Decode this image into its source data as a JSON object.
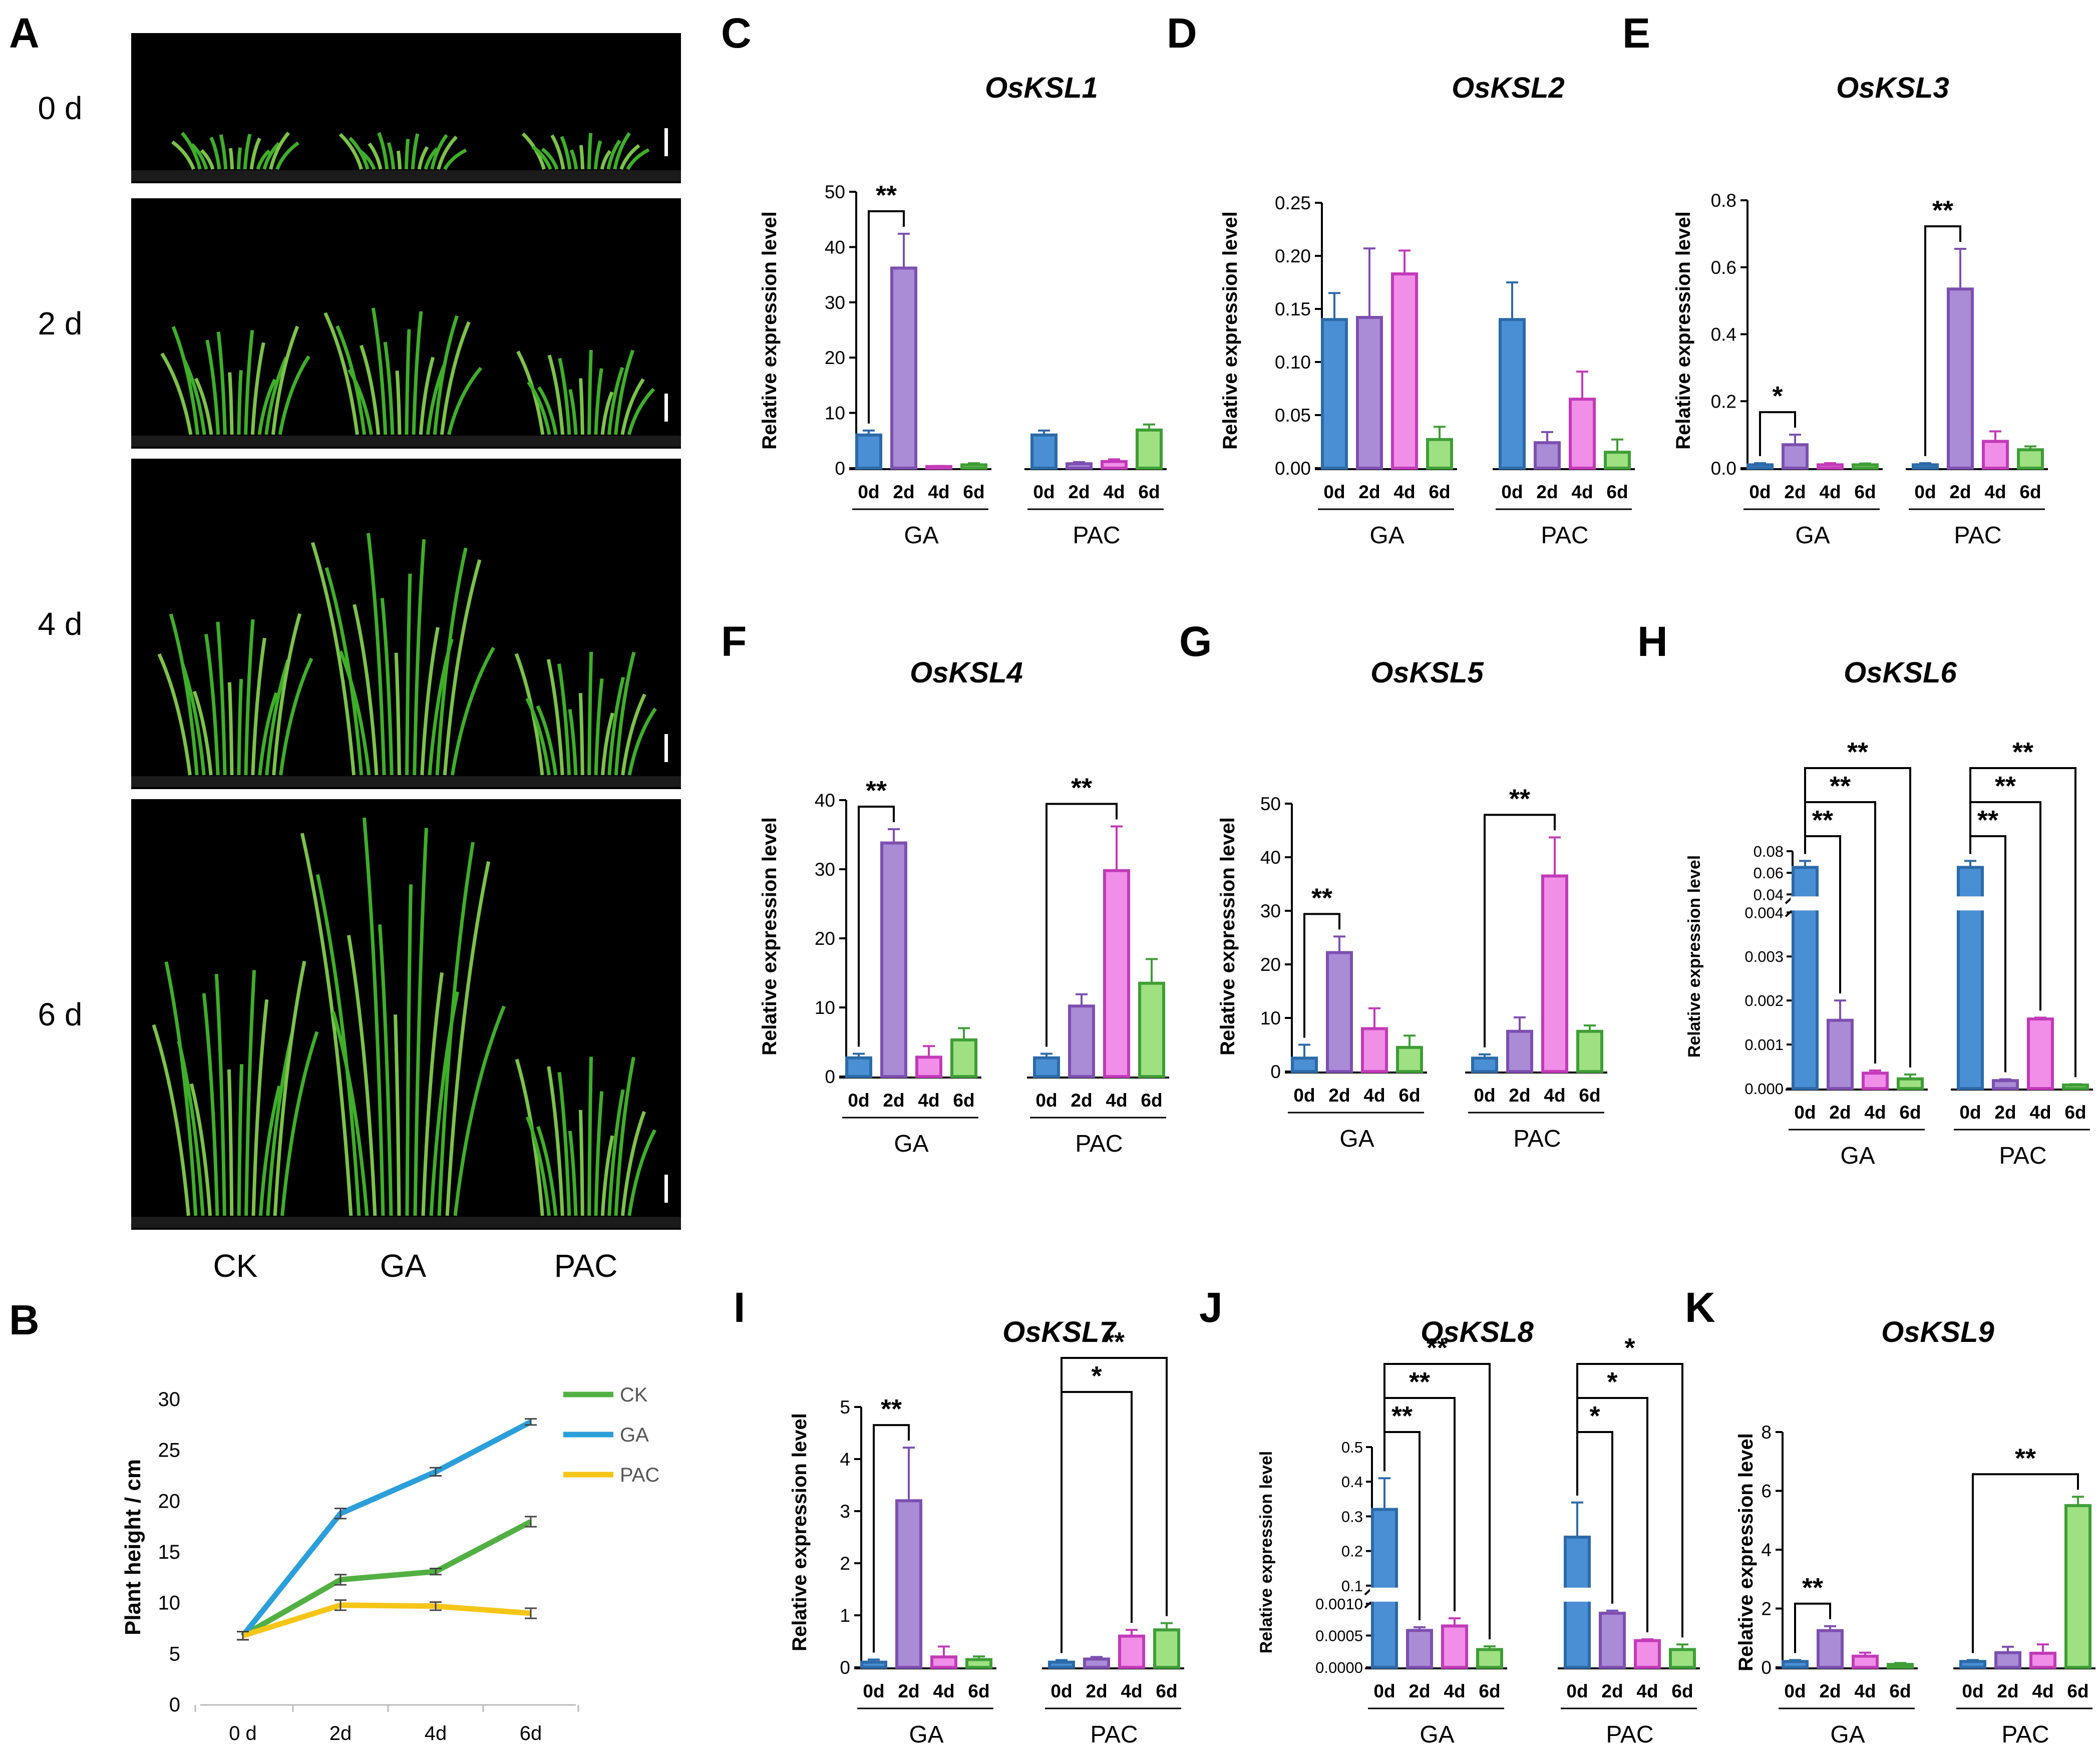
{
  "panel_A": {
    "label": "A",
    "day_labels": [
      "0 d",
      "2 d",
      "4 d",
      "6 d"
    ],
    "treatment_labels": [
      "CK",
      "GA",
      "PAC"
    ],
    "plant_height_level": [
      [
        0.28,
        0.28,
        0.28
      ],
      [
        0.47,
        0.55,
        0.37
      ],
      [
        0.52,
        0.78,
        0.4
      ],
      [
        0.62,
        0.97,
        0.39
      ]
    ]
  },
  "colors": {
    "bar_edges": [
      "#2c6aa8",
      "#7d4fb0",
      "#c23ab8",
      "#3f9e36"
    ],
    "bar_fills": [
      "#4a8fd4",
      "#a98bd6",
      "#f08ee8",
      "#9ee082"
    ],
    "line_ck": "#52b043",
    "line_ga": "#2b9fd9",
    "line_pac": "#f5c518",
    "photo_background": "#000000",
    "leaf_green": "#3fae2a"
  },
  "chart_data": [
    {
      "panel": "B",
      "type": "line",
      "x": [
        "0 d",
        "2d",
        "4d",
        "6d"
      ],
      "ylabel": "Plant height / cm",
      "ylim": [
        0,
        30
      ],
      "yticks": [
        0,
        5,
        10,
        15,
        20,
        25,
        30
      ],
      "legend_position": "top-right",
      "series": [
        {
          "name": "CK",
          "values": [
            6.8,
            12.3,
            13.1,
            18.0
          ],
          "err": [
            0.4,
            0.5,
            0.3,
            0.5
          ]
        },
        {
          "name": "GA",
          "values": [
            6.8,
            18.8,
            22.9,
            27.8
          ],
          "err": [
            0.4,
            0.5,
            0.4,
            0.3
          ]
        },
        {
          "name": "PAC",
          "values": [
            6.8,
            9.8,
            9.7,
            9.0
          ],
          "err": [
            0.4,
            0.5,
            0.4,
            0.5
          ]
        }
      ]
    },
    {
      "panel": "C",
      "title": "OsKSL1",
      "type": "bar",
      "ylabel": "Relative expression level",
      "ylim": [
        0,
        50
      ],
      "yticks": [
        "0",
        "10",
        "20",
        "30",
        "40",
        "50"
      ],
      "groups": [
        "GA",
        "PAC"
      ],
      "categories": [
        "0d",
        "2d",
        "4d",
        "6d"
      ],
      "values": [
        [
          6.0,
          36.2,
          0.3,
          0.6
        ],
        [
          6.0,
          0.8,
          1.2,
          6.9
        ]
      ],
      "err": [
        [
          0.8,
          6.2,
          0.1,
          0.3
        ],
        [
          0.8,
          0.3,
          0.4,
          1.0
        ]
      ],
      "significance": [
        {
          "group": 0,
          "from": 0,
          "to": 1,
          "label": "**"
        }
      ]
    },
    {
      "panel": "D",
      "title": "OsKSL2",
      "type": "bar",
      "ylabel": "Relative expression level",
      "ylim": [
        0,
        0.25
      ],
      "yticks": [
        "0.00",
        "0.05",
        "0.10",
        "0.15",
        "0.20",
        "0.25"
      ],
      "groups": [
        "GA",
        "PAC"
      ],
      "categories": [
        "0d",
        "2d",
        "4d",
        "6d"
      ],
      "values": [
        [
          0.14,
          0.142,
          0.183,
          0.027
        ],
        [
          0.14,
          0.024,
          0.065,
          0.015
        ]
      ],
      "err": [
        [
          0.025,
          0.065,
          0.022,
          0.012
        ],
        [
          0.035,
          0.01,
          0.026,
          0.012
        ]
      ],
      "significance": []
    },
    {
      "panel": "E",
      "title": "OsKSL3",
      "type": "bar",
      "ylabel": "Relative expression level",
      "ylim": [
        0,
        0.8
      ],
      "yticks": [
        "0.0",
        "0.2",
        "0.4",
        "0.6",
        "0.8"
      ],
      "groups": [
        "GA",
        "PAC"
      ],
      "categories": [
        "0d",
        "2d",
        "4d",
        "6d"
      ],
      "values": [
        [
          0.01,
          0.07,
          0.01,
          0.01
        ],
        [
          0.01,
          0.535,
          0.08,
          0.055
        ]
      ],
      "err": [
        [
          0.005,
          0.03,
          0.005,
          0.004
        ],
        [
          0.005,
          0.12,
          0.03,
          0.01
        ]
      ],
      "significance": [
        {
          "group": 0,
          "from": 0,
          "to": 1,
          "label": "*"
        },
        {
          "group": 1,
          "from": 0,
          "to": 1,
          "label": "**"
        }
      ]
    },
    {
      "panel": "F",
      "title": "OsKSL4",
      "type": "bar",
      "ylabel": "Relative expression level",
      "ylim": [
        0,
        40
      ],
      "yticks": [
        "0",
        "10",
        "20",
        "30",
        "40"
      ],
      "groups": [
        "GA",
        "PAC"
      ],
      "categories": [
        "0d",
        "2d",
        "4d",
        "6d"
      ],
      "values": [
        [
          2.7,
          33.8,
          2.8,
          5.3
        ],
        [
          2.7,
          10.2,
          29.8,
          13.5
        ]
      ],
      "err": [
        [
          0.6,
          2.0,
          1.6,
          1.7
        ],
        [
          0.6,
          1.7,
          6.4,
          3.5
        ]
      ],
      "significance": [
        {
          "group": 0,
          "from": 0,
          "to": 1,
          "label": "**"
        },
        {
          "group": 1,
          "from": 0,
          "to": 2,
          "label": "**"
        }
      ]
    },
    {
      "panel": "G",
      "title": "OsKSL5",
      "type": "bar",
      "ylabel": "Relative expression level",
      "ylim": [
        0,
        50
      ],
      "yticks": [
        "0",
        "10",
        "20",
        "30",
        "40",
        "50"
      ],
      "groups": [
        "GA",
        "PAC"
      ],
      "categories": [
        "0d",
        "2d",
        "4d",
        "6d"
      ],
      "values": [
        [
          2.5,
          22.2,
          8.0,
          4.5
        ],
        [
          2.5,
          7.5,
          36.5,
          7.5
        ]
      ],
      "err": [
        [
          2.5,
          3.0,
          3.8,
          2.2
        ],
        [
          0.7,
          2.6,
          7.2,
          1.1
        ]
      ],
      "significance": [
        {
          "group": 0,
          "from": 0,
          "to": 1,
          "label": "**"
        },
        {
          "group": 1,
          "from": 0,
          "to": 2,
          "label": "**"
        }
      ]
    },
    {
      "panel": "H",
      "title": "OsKSL6",
      "type": "bar",
      "broken_axis": true,
      "ylabel": "Relative expression level",
      "yticks_upper": [
        "0.04",
        "0.06",
        "0.08"
      ],
      "yticks_lower": [
        "0.000",
        "0.001",
        "0.002",
        "0.003",
        "0.004"
      ],
      "groups": [
        "GA",
        "PAC"
      ],
      "categories": [
        "0d",
        "2d",
        "4d",
        "6d"
      ],
      "values": [
        [
          0.065,
          0.00155,
          0.00035,
          0.00022
        ],
        [
          0.065,
          0.00018,
          0.00158,
          8e-05
        ]
      ],
      "err": [
        [
          0.006,
          0.00045,
          6e-05,
          0.0001
        ],
        [
          0.006,
          3e-05,
          3e-05,
          2e-05
        ]
      ],
      "significance": [
        {
          "group": 0,
          "from": 0,
          "to": 1,
          "label": "**"
        },
        {
          "group": 0,
          "from": 0,
          "to": 2,
          "label": "**"
        },
        {
          "group": 0,
          "from": 0,
          "to": 3,
          "label": "**"
        },
        {
          "group": 1,
          "from": 0,
          "to": 1,
          "label": "**"
        },
        {
          "group": 1,
          "from": 0,
          "to": 2,
          "label": "**"
        },
        {
          "group": 1,
          "from": 0,
          "to": 3,
          "label": "**"
        }
      ]
    },
    {
      "panel": "I",
      "title": "OsKSL7",
      "type": "bar",
      "ylabel": "Relative expression level",
      "ylim": [
        0,
        5
      ],
      "yticks": [
        "0",
        "1",
        "2",
        "3",
        "4",
        "5"
      ],
      "groups": [
        "GA",
        "PAC"
      ],
      "categories": [
        "0d",
        "2d",
        "4d",
        "6d"
      ],
      "values": [
        [
          0.1,
          3.2,
          0.2,
          0.15
        ],
        [
          0.1,
          0.16,
          0.6,
          0.72
        ]
      ],
      "err": [
        [
          0.05,
          1.02,
          0.2,
          0.06
        ],
        [
          0.04,
          0.04,
          0.12,
          0.13
        ]
      ],
      "significance": [
        {
          "group": 0,
          "from": 0,
          "to": 1,
          "label": "**"
        },
        {
          "group": 1,
          "from": 0,
          "to": 2,
          "label": "*"
        },
        {
          "group": 1,
          "from": 0,
          "to": 3,
          "label": "**"
        }
      ]
    },
    {
      "panel": "J",
      "title": "OsKSL8",
      "type": "bar",
      "broken_axis": true,
      "ylabel": "Relative expression level",
      "yticks_upper": [
        "0.1",
        "0.2",
        "0.3",
        "0.4",
        "0.5"
      ],
      "yticks_lower": [
        "0.0000",
        "0.0005",
        "0.0010"
      ],
      "groups": [
        "GA",
        "PAC"
      ],
      "categories": [
        "0d",
        "2d",
        "4d",
        "6d"
      ],
      "values": [
        [
          0.32,
          0.00058,
          0.00065,
          0.00028
        ],
        [
          0.24,
          0.00085,
          0.00042,
          0.00028
        ]
      ],
      "err": [
        [
          0.09,
          5e-05,
          0.00012,
          5e-05
        ],
        [
          0.1,
          4e-05,
          2e-05,
          8e-05
        ]
      ],
      "significance": [
        {
          "group": 0,
          "from": 0,
          "to": 1,
          "label": "**"
        },
        {
          "group": 0,
          "from": 0,
          "to": 2,
          "label": "**"
        },
        {
          "group": 0,
          "from": 0,
          "to": 3,
          "label": "**"
        },
        {
          "group": 1,
          "from": 0,
          "to": 1,
          "label": "*"
        },
        {
          "group": 1,
          "from": 0,
          "to": 2,
          "label": "*"
        },
        {
          "group": 1,
          "from": 0,
          "to": 3,
          "label": "*"
        }
      ]
    },
    {
      "panel": "K",
      "title": "OsKSL9",
      "type": "bar",
      "ylabel": "Relative expression level",
      "ylim": [
        0,
        8
      ],
      "yticks": [
        "0",
        "2",
        "4",
        "6",
        "8"
      ],
      "groups": [
        "GA",
        "PAC"
      ],
      "categories": [
        "0d",
        "2d",
        "4d",
        "6d"
      ],
      "values": [
        [
          0.2,
          1.25,
          0.38,
          0.1
        ],
        [
          0.2,
          0.5,
          0.48,
          5.5
        ]
      ],
      "err": [
        [
          0.05,
          0.15,
          0.12,
          0.05
        ],
        [
          0.05,
          0.2,
          0.3,
          0.3
        ]
      ],
      "significance": [
        {
          "group": 0,
          "from": 0,
          "to": 1,
          "label": "**"
        },
        {
          "group": 1,
          "from": 0,
          "to": 3,
          "label": "**"
        }
      ]
    }
  ]
}
